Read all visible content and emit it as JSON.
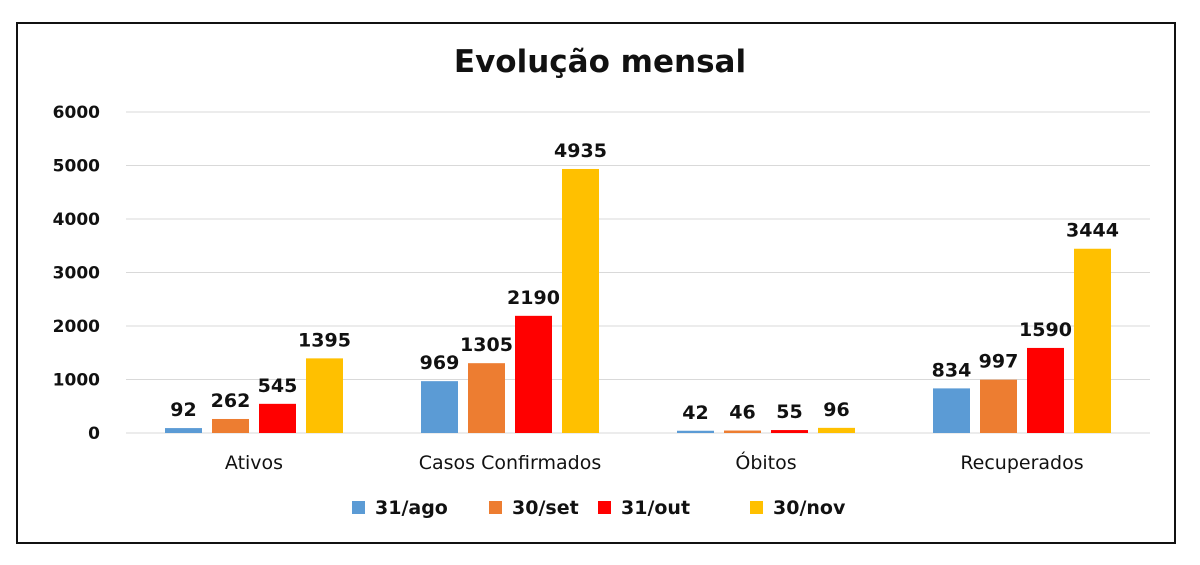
{
  "chart_data": {
    "type": "bar",
    "title": "Evolução mensal",
    "xlabel": "",
    "ylabel": "",
    "ylim": [
      0,
      6000
    ],
    "yticks": [
      "0",
      "1000",
      "2000",
      "3000",
      "4000",
      "5000",
      "6000"
    ],
    "categories": [
      "Ativos",
      "Casos Confirmados",
      "Óbitos",
      "Recuperados"
    ],
    "series": [
      {
        "name": "31/ago",
        "color": "#5B9BD5",
        "values": [
          92,
          969,
          42,
          834
        ]
      },
      {
        "name": "30/set",
        "color": "#ED7D31",
        "values": [
          262,
          1305,
          46,
          997
        ]
      },
      {
        "name": "31/out",
        "color": "#FF0000",
        "values": [
          545,
          2190,
          55,
          1590
        ]
      },
      {
        "name": "30/nov",
        "color": "#FFC000",
        "values": [
          1395,
          4935,
          96,
          3444
        ]
      }
    ],
    "grid": true,
    "legend": "bottom-center",
    "data_labels": true
  }
}
